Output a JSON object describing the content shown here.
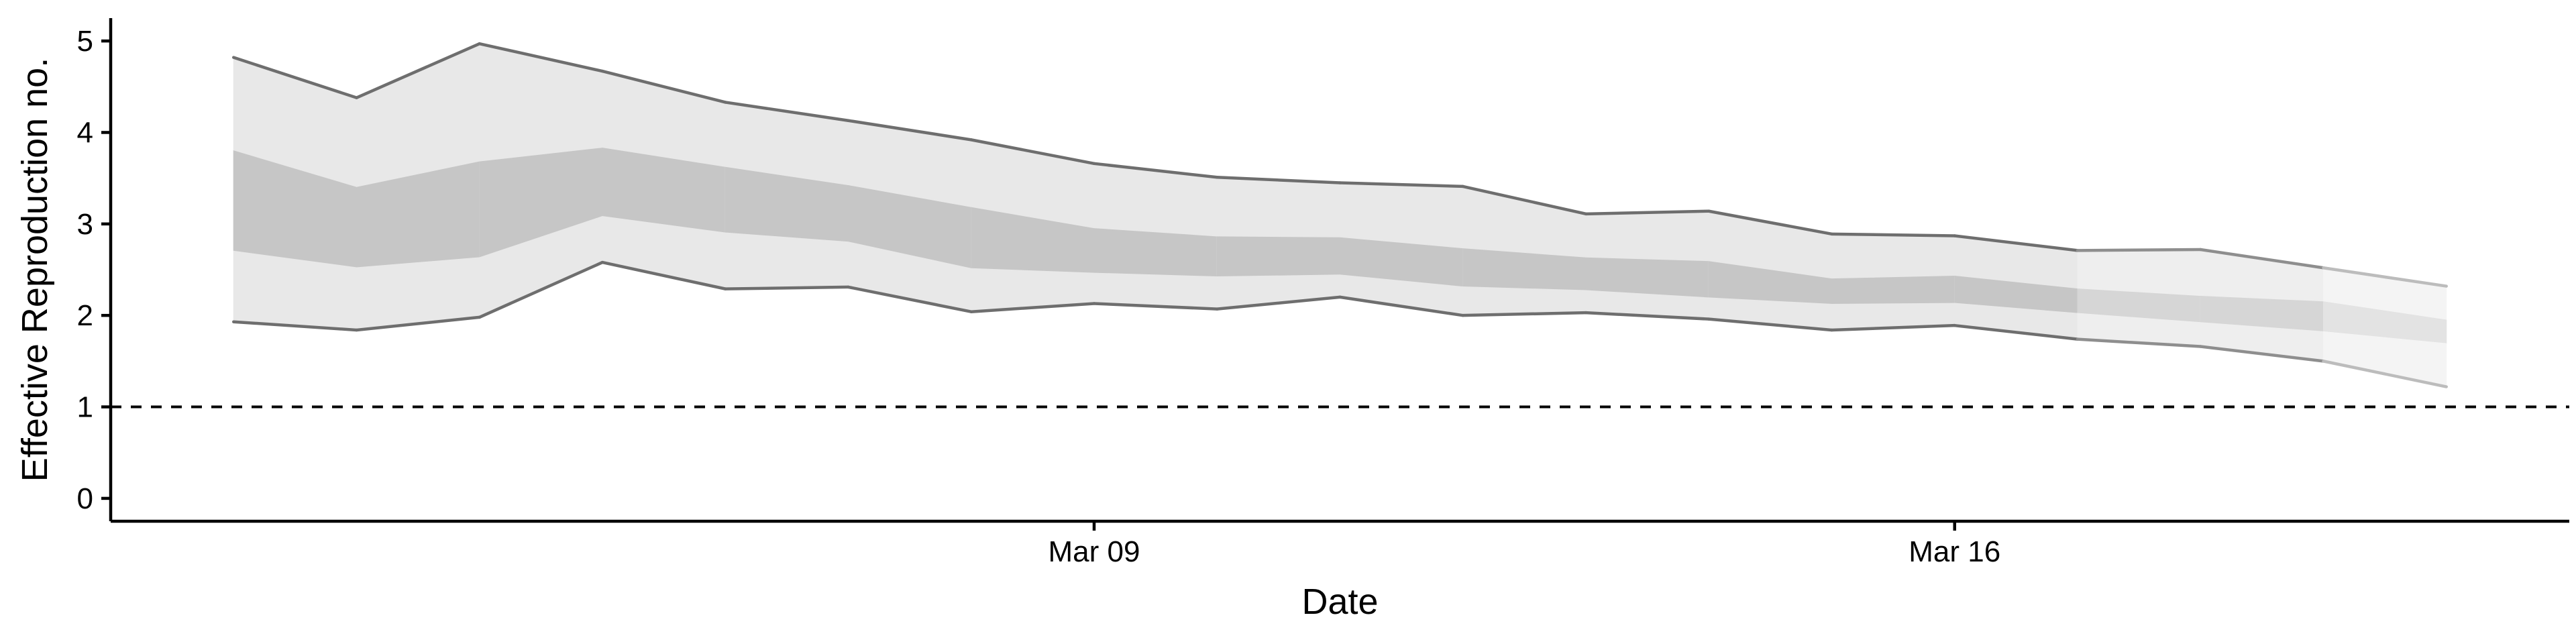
{
  "chart_data": {
    "type": "area",
    "xlabel": "Date",
    "ylabel": "Effective Reproduction no.",
    "x_ticks": [
      {
        "date": "2020-03-09",
        "label": "Mar 09"
      },
      {
        "date": "2020-03-16",
        "label": "Mar 16"
      }
    ],
    "y_ticks": [
      0,
      1,
      2,
      3,
      4,
      5
    ],
    "xlim": [
      "2020-03-01",
      "2020-03-21"
    ],
    "ylim": [
      -0.25,
      5.25
    ],
    "grid": false,
    "reference_line": {
      "y": 1,
      "style": "dashed"
    },
    "series": [
      {
        "dates": [
          "2020-03-02",
          "2020-03-03",
          "2020-03-04",
          "2020-03-05",
          "2020-03-06",
          "2020-03-07",
          "2020-03-08",
          "2020-03-09",
          "2020-03-10",
          "2020-03-11",
          "2020-03-12",
          "2020-03-13",
          "2020-03-14",
          "2020-03-15",
          "2020-03-16",
          "2020-03-17",
          "2020-03-18",
          "2020-03-19",
          "2020-03-20"
        ],
        "outer_upper": [
          4.82,
          4.38,
          4.97,
          4.67,
          4.33,
          4.13,
          3.92,
          3.66,
          3.51,
          3.45,
          3.41,
          3.11,
          3.14,
          2.89,
          2.87,
          2.71,
          2.72,
          2.52,
          2.32
        ],
        "inner_upper": [
          3.8,
          3.4,
          3.68,
          3.83,
          3.62,
          3.42,
          3.18,
          2.95,
          2.86,
          2.85,
          2.73,
          2.63,
          2.59,
          2.4,
          2.43,
          2.29,
          2.21,
          2.15,
          1.95
        ],
        "inner_lower": [
          2.71,
          2.53,
          2.64,
          3.09,
          2.91,
          2.81,
          2.52,
          2.47,
          2.43,
          2.45,
          2.32,
          2.28,
          2.2,
          2.13,
          2.14,
          2.03,
          1.93,
          1.83,
          1.7
        ],
        "outer_lower": [
          1.93,
          1.84,
          1.98,
          2.58,
          2.29,
          2.31,
          2.04,
          2.13,
          2.07,
          2.2,
          2.0,
          2.03,
          1.96,
          1.84,
          1.89,
          1.74,
          1.66,
          1.5,
          1.22
        ],
        "estimate_type": [
          "estimate",
          "estimate",
          "estimate",
          "estimate",
          "estimate",
          "estimate",
          "estimate",
          "estimate",
          "estimate",
          "estimate",
          "estimate",
          "estimate",
          "estimate",
          "estimate",
          "estimate",
          "estimate",
          "estimate based on partial data",
          "estimate based on partial data",
          "forecast"
        ]
      }
    ],
    "colors": {
      "outer_band": "#e8e8e8",
      "inner_band": "#c6c6c6",
      "band_edge": "#6e6e6e",
      "partial_outer": "#eeeeee",
      "partial_inner": "#d6d6d6",
      "partial_edge": "#8e8e8e",
      "forecast_outer": "#f4f4f4",
      "forecast_inner": "#e3e3e3",
      "forecast_edge": "#bcbcbc",
      "axis": "#000000"
    }
  }
}
